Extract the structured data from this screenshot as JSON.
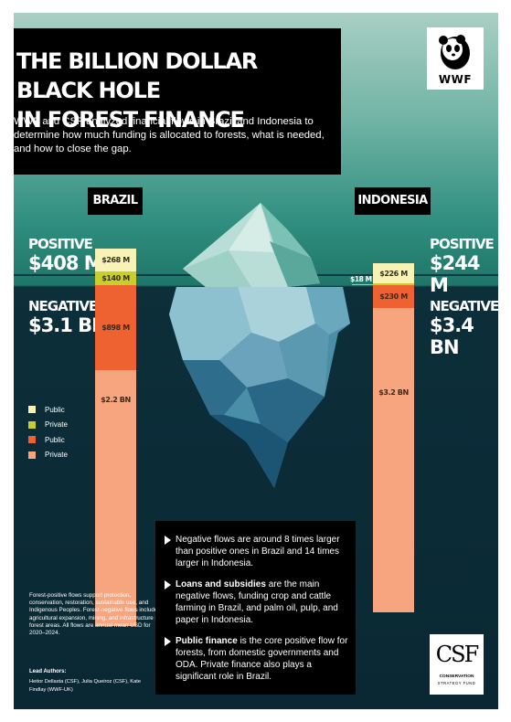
{
  "title_line1": "THE BILLION DOLLAR BLACK HOLE",
  "title_line2": "IN FOREST FINANCE",
  "intro": "WWF and CSF analyzed financial flows in Brazil and Indonesia to determine how much funding is allocated to forests, what is needed, and how to close the gap.",
  "wwf_logo_text": "WWF",
  "brazil": {
    "name": "BRAZIL",
    "positive_label": "POSITIVE",
    "positive_total": "$408 M",
    "negative_label": "NEGATIVE",
    "negative_total": "$3.1 BN",
    "segments": [
      {
        "label": "$268 M",
        "value_musd": 268,
        "kind": "positive-public"
      },
      {
        "label": "$140 M",
        "value_musd": 140,
        "kind": "positive-private"
      },
      {
        "label": "$898 M",
        "value_musd": 898,
        "kind": "negative-public"
      },
      {
        "label": "$2.2 BN",
        "value_musd": 2200,
        "kind": "negative-private"
      }
    ]
  },
  "indonesia": {
    "name": "INDONESIA",
    "positive_label": "POSITIVE",
    "positive_total": "$244 M",
    "negative_label": "NEGATIVE",
    "negative_total": "$3.4 BN",
    "private_positive_label": "$18 M",
    "segments": [
      {
        "label": "$226 M",
        "value_musd": 226,
        "kind": "positive-public"
      },
      {
        "label": "",
        "value_musd": 18,
        "kind": "positive-private"
      },
      {
        "label": "$230 M",
        "value_musd": 230,
        "kind": "negative-public"
      },
      {
        "label": "$3.2 BN",
        "value_musd": 3200,
        "kind": "negative-private"
      }
    ]
  },
  "legend": [
    {
      "label": "Public",
      "color": "#f7f3b6"
    },
    {
      "label": "Private",
      "color": "#c8cf2b"
    },
    {
      "label": "Public",
      "color": "#ee6232"
    },
    {
      "label": "Private",
      "color": "#f6a57f"
    }
  ],
  "colors": {
    "positive_public": "#f7f3b6",
    "positive_private": "#c8cf2b",
    "negative_public": "#ee6232",
    "negative_private": "#f6a57f",
    "water": "#0c2f3a",
    "sky": "#2f8e7f"
  },
  "note": "Forest-positive flows support protection, conservation, restoration, sustainable use, and Indigenous Peoples. Forest-negative flows include agricultural expansion, mining, and infrastructure in forest areas. All flows are annual mean USD for 2020–2024.",
  "authors_heading": "Lead Authors:",
  "authors": "Heitor Dellasta (CSF), Julia Queiroz (CSF), Kate Findlay (WWF-UK)",
  "facts": [
    {
      "lead": "",
      "bold": "",
      "text": "Negative flows are around 8 times larger than positive ones in Brazil and 14 times larger in Indonesia."
    },
    {
      "lead": "",
      "bold": "Loans and subsidies",
      "text": " are the main negative flows, funding crop and cattle farming in Brazil, and palm oil, pulp, and paper in Indonesia."
    },
    {
      "lead": "",
      "bold": "Public finance",
      "text": " is the core positive flow for forests, from domestic governments and ODA. Private finance also plays a significant role in Brazil."
    }
  ],
  "csf_logo": {
    "mark": "CSF",
    "line1": "CONSERVATION",
    "line2": "STRATEGY FUND"
  }
}
